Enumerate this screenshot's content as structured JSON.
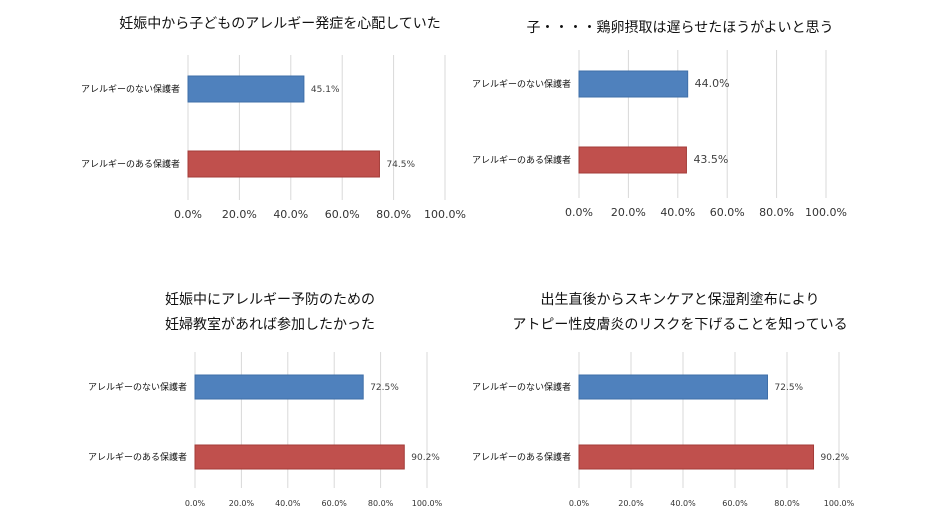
{
  "colors": {
    "no_allergy": "#4F81BD",
    "allergy": "#C0504D",
    "grid": "#D9D9D9"
  },
  "chart_data": [
    {
      "type": "bar",
      "orientation": "horizontal",
      "title": [
        "妊娠中から子どものアレルギー発症を心配していた"
      ],
      "categories": [
        "アレルギーのない保護者",
        "アレルギーのある保護者"
      ],
      "values": [
        45.1,
        74.5
      ],
      "data_labels": [
        "45.1%",
        "74.5%"
      ],
      "xlim": [
        0,
        100
      ],
      "xticks": [
        "0.0%",
        "20.0%",
        "40.0%",
        "60.0%",
        "80.0%",
        "100.0%"
      ],
      "grid": true
    },
    {
      "type": "bar",
      "orientation": "horizontal",
      "title": [
        "子・・・・鶏卵摂取は遅らせたほうがよいと思う"
      ],
      "categories": [
        "アレルギーのない保護者",
        "アレルギーのある保護者"
      ],
      "values": [
        44.0,
        43.5
      ],
      "data_labels": [
        "44.0%",
        "43.5%"
      ],
      "xlim": [
        0,
        100
      ],
      "xticks": [
        "0.0%",
        "20.0%",
        "40.0%",
        "60.0%",
        "80.0%",
        "100.0%"
      ],
      "grid": true
    },
    {
      "type": "bar",
      "orientation": "horizontal",
      "title": [
        "妊娠中にアレルギー予防のための",
        "妊婦教室があれば参加したかった"
      ],
      "categories": [
        "アレルギーのない保護者",
        "アレルギーのある保護者"
      ],
      "values": [
        72.5,
        90.2
      ],
      "data_labels": [
        "72.5%",
        "90.2%"
      ],
      "xlim": [
        0,
        100
      ],
      "xticks": [
        "0.0%",
        "20.0%",
        "40.0%",
        "60.0%",
        "80.0%",
        "100.0%"
      ],
      "grid": true
    },
    {
      "type": "bar",
      "orientation": "horizontal",
      "title": [
        "出生直後からスキンケアと保湿剤塗布により",
        "アトピー性皮膚炎のリスクを下げることを知っている"
      ],
      "categories": [
        "アレルギーのない保護者",
        "アレルギーのある保護者"
      ],
      "values": [
        72.5,
        90.2
      ],
      "data_labels": [
        "72.5%",
        "90.2%"
      ],
      "xlim": [
        0,
        100
      ],
      "xticks": [
        "0.0%",
        "20.0%",
        "40.0%",
        "60.0%",
        "80.0%",
        "100.0%"
      ],
      "grid": true
    }
  ]
}
